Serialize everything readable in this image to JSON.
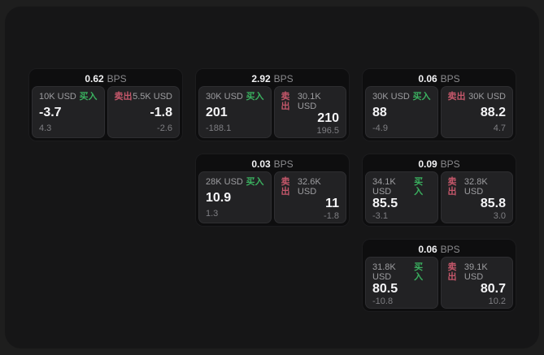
{
  "labels": {
    "bps": "BPS",
    "buy": "买入",
    "sell": "卖出"
  },
  "colors": {
    "buy": "#3ab05f",
    "sell": "#c4576a",
    "outer_bg": "#1e1e1e",
    "panel_bg": "#161617",
    "card_bg": "#0e0e0f",
    "tile_bg": "#222224"
  },
  "cards": [
    {
      "col": 1,
      "row": 1,
      "bps": "0.62",
      "buy": {
        "size": "10K USD",
        "value": "-3.7",
        "delta": "4.3"
      },
      "sell": {
        "size": "5.5K USD",
        "value": "-1.8",
        "delta": "-2.6"
      }
    },
    {
      "col": 2,
      "row": 1,
      "bps": "2.92",
      "buy": {
        "size": "30K USD",
        "value": "201",
        "delta": "-188.1"
      },
      "sell": {
        "size": "30.1K USD",
        "value": "210",
        "delta": "196.5"
      }
    },
    {
      "col": 3,
      "row": 1,
      "bps": "0.06",
      "buy": {
        "size": "30K USD",
        "value": "88",
        "delta": "-4.9"
      },
      "sell": {
        "size": "30K USD",
        "value": "88.2",
        "delta": "4.7"
      }
    },
    {
      "col": 2,
      "row": 2,
      "bps": "0.03",
      "buy": {
        "size": "28K USD",
        "value": "10.9",
        "delta": "1.3"
      },
      "sell": {
        "size": "32.6K USD",
        "value": "11",
        "delta": "-1.8"
      }
    },
    {
      "col": 3,
      "row": 2,
      "bps": "0.09",
      "buy": {
        "size": "34.1K USD",
        "value": "85.5",
        "delta": "-3.1"
      },
      "sell": {
        "size": "32.8K USD",
        "value": "85.8",
        "delta": "3.0"
      }
    },
    {
      "col": 3,
      "row": 3,
      "bps": "0.06",
      "buy": {
        "size": "31.8K USD",
        "value": "80.5",
        "delta": "-10.8"
      },
      "sell": {
        "size": "39.1K USD",
        "value": "80.7",
        "delta": "10.2"
      }
    }
  ]
}
